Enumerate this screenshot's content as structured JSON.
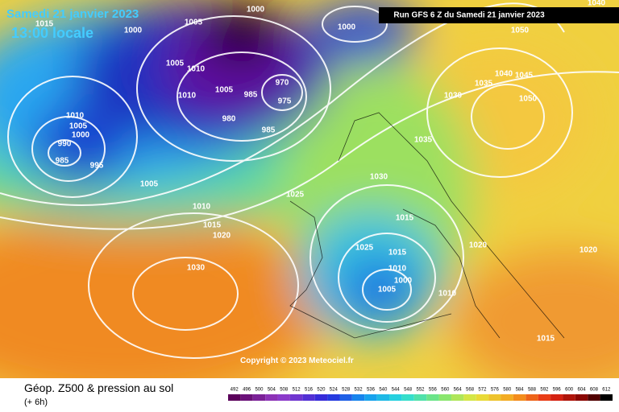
{
  "header": {
    "date": "Samedi 21 janvier 2023",
    "time": "13:00 locale",
    "run": "Run GFS 6 Z du Samedi 21 janvier 2023"
  },
  "copyright": "Copyright © 2023 Meteociel.fr",
  "footer": {
    "title": "Géop. Z500 & pression au sol",
    "lead": "(+ 6h)"
  },
  "scale": {
    "labels": [
      492,
      496,
      500,
      504,
      508,
      512,
      516,
      520,
      524,
      528,
      532,
      536,
      540,
      544,
      548,
      552,
      556,
      560,
      564,
      568,
      572,
      576,
      580,
      584,
      588,
      592,
      596,
      600,
      604,
      608,
      612
    ]
  },
  "isobars": [
    1015,
    1000,
    1005,
    1000,
    1000,
    1050,
    1040,
    1040,
    1045,
    1050,
    1035,
    1030,
    1035,
    1005,
    1010,
    1010,
    1005,
    985,
    980,
    985,
    970,
    975,
    1010,
    1005,
    1000,
    990,
    985,
    995,
    1005,
    1010,
    1015,
    1020,
    1025,
    1030,
    1015,
    1025,
    1015,
    1010,
    1000,
    1005,
    1010,
    1020,
    1020,
    1030,
    1015
  ]
}
